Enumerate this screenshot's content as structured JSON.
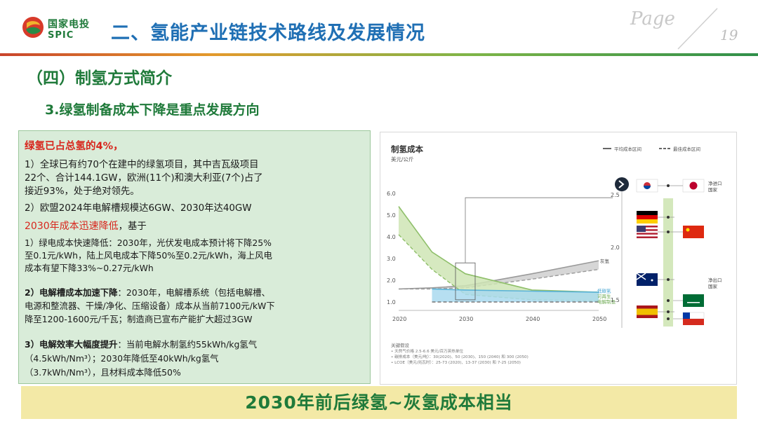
{
  "header": {
    "logo_cn": "国家电投",
    "logo_en": "SPIC",
    "title": "二、氢能产业链技术路线及发展情况",
    "page_label": "Page",
    "page_number": "19"
  },
  "section_title": "（四）制氢方式简介",
  "subsection_title": "3.绿氢制备成本下降是重点发展方向",
  "text_box": {
    "line1": "绿氢已占总氢的4%，",
    "line2": "1）全球已有约70个在建中的绿氢项目，其中吉瓦级项目",
    "line3": "22个、合计144.1GW，欧洲(11个)和澳大利亚(7个)占了",
    "line4": "接近93%，处于绝对领先。",
    "line5": "2）欧盟2024年电解槽规模达6GW、2030年达40GW",
    "line6_red": "2030年成本迅速降低",
    "line6_rest": "，基于",
    "line7": "1）绿电成本快速降低：2030年，光伏发电成本预计将下降25%",
    "line8": "至0.1元/kWh，陆上风电成本下降50%至0.2元/kWh，海上风电",
    "line9": "成本有望下降33%~0.27元/kWh",
    "line10_bold": "2）电解槽成本加速下降",
    "line10_rest": "：2030年，电解槽系统（包括电解槽、",
    "line11": "电源和整流器、干燥/净化、压缩设备）成本从当前7100元/kW下",
    "line12": "降至1200-1600元/千瓦；制造商已宣布产能扩大超过3GW",
    "line13_bold": "3）电解效率大幅度提升",
    "line13_rest": "：当前电解水制氢约55kWh/kg氢气",
    "line14": "（4.5kWh/Nm³）；2030年降低至40kWh/kg氢气",
    "line15": "（3.7kWh/Nm³），且材料成本降低50%"
  },
  "chart": {
    "title": "制氢成本",
    "unit": "美元/公斤",
    "legend_avg": "平均成本区间",
    "legend_best": "最佳成本区间",
    "label_grey": "灰氢",
    "label_green_a": "低碳氢",
    "label_green_b": "可再生",
    "label_green_c": "电解制氢",
    "label_importer": "净进口",
    "label_importer2": "国家",
    "label_exporter": "净出口",
    "label_exporter2": "国家",
    "notes_title": "关键假设",
    "note1": "• 天然气价格 2.5-6.6 美元/百万英热单位",
    "note2": "• 碳排成本（美元/吨）：30(2020)、50 (2030)、150 (2040) 和 300 (2050)",
    "note3": "• LCOE（美元/兆瓦时）：25-73 (2020)、13-37 (2030) 和 7-25 (2050)",
    "colors": {
      "green": "#8fbf6a",
      "grey": "#9a9a9a",
      "blue": "#5ab3d8"
    }
  },
  "chart_data": {
    "type": "line",
    "title": "制氢成本",
    "ylabel": "美元/公斤",
    "x": [
      2020,
      2025,
      2030,
      2040,
      2050
    ],
    "xticks": [
      2020,
      2030,
      2040,
      2050
    ],
    "ylim": [
      0,
      6.0
    ],
    "yticks": [
      1.0,
      2.0,
      3.0,
      4.0,
      5.0,
      6.0
    ],
    "series": [
      {
        "name": "灰氢",
        "upper": [
          1.6,
          1.65,
          1.75,
          2.3,
          2.9
        ],
        "lower": [
          1.6,
          1.6,
          1.65,
          2.05,
          2.5
        ]
      },
      {
        "name": "可再生",
        "upper": [
          5.4,
          3.3,
          2.3,
          1.55,
          1.45
        ],
        "lower": [
          4.1,
          2.5,
          1.35,
          1.1,
          1.05
        ]
      },
      {
        "name": "低碳氢",
        "upper": [
          1.6,
          1.6,
          1.55,
          1.5,
          1.45
        ],
        "lower": [
          1.0,
          1.0,
          1.0,
          1.0,
          1.0
        ]
      }
    ],
    "right_axis": {
      "yticks": [
        1.5,
        2.0,
        2.5
      ]
    },
    "grid": false
  },
  "banner": "2030年前后绿氢~灰氢成本相当"
}
